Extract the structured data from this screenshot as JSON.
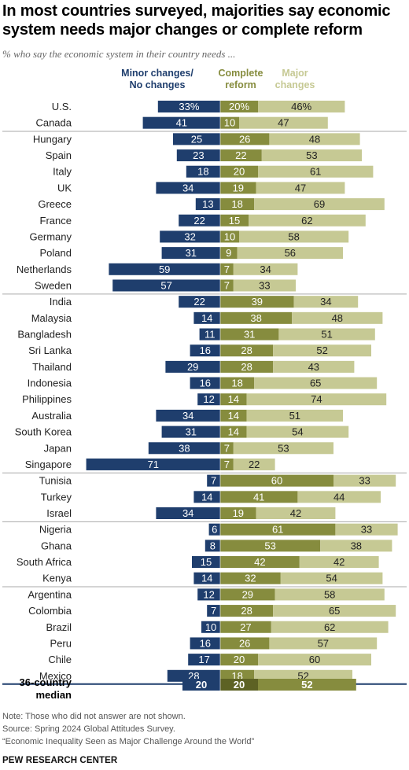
{
  "title": "In most countries surveyed, majorities say economic system needs major changes or complete reform",
  "subtitle": "% who say the economic system in their country needs ...",
  "legend": {
    "minor": [
      "Minor changes/",
      "No changes"
    ],
    "complete": [
      "Complete",
      "reform"
    ],
    "major": [
      "Major",
      "changes"
    ]
  },
  "colors": {
    "minor": "#1f3e6d",
    "complete": "#868c3e",
    "major": "#c6c994",
    "separator": "#1f3e6d",
    "legend_complete": "#868c3e",
    "legend_major": "#c6c994"
  },
  "chart_data": {
    "type": "bar",
    "orientation": "horizontal-diverging-stacked",
    "series_names": [
      "Minor changes/No changes",
      "Complete reform",
      "Major changes"
    ],
    "rows": [
      {
        "label": "U.S.",
        "minor": 33,
        "complete": 20,
        "major": 46,
        "minor_text": "33%",
        "complete_text": "20%",
        "major_text": "46%"
      },
      {
        "label": "Canada",
        "minor": 41,
        "complete": 10,
        "major": 47
      },
      {
        "label": "Hungary",
        "minor": 25,
        "complete": 26,
        "major": 48
      },
      {
        "label": "Spain",
        "minor": 23,
        "complete": 22,
        "major": 53
      },
      {
        "label": "Italy",
        "minor": 18,
        "complete": 20,
        "major": 61
      },
      {
        "label": "UK",
        "minor": 34,
        "complete": 19,
        "major": 47
      },
      {
        "label": "Greece",
        "minor": 13,
        "complete": 18,
        "major": 69
      },
      {
        "label": "France",
        "minor": 22,
        "complete": 15,
        "major": 62
      },
      {
        "label": "Germany",
        "minor": 32,
        "complete": 10,
        "major": 58
      },
      {
        "label": "Poland",
        "minor": 31,
        "complete": 9,
        "major": 56
      },
      {
        "label": "Netherlands",
        "minor": 59,
        "complete": 7,
        "major": 34
      },
      {
        "label": "Sweden",
        "minor": 57,
        "complete": 7,
        "major": 33
      },
      {
        "label": "India",
        "minor": 22,
        "complete": 39,
        "major": 34
      },
      {
        "label": "Malaysia",
        "minor": 14,
        "complete": 38,
        "major": 48
      },
      {
        "label": "Bangladesh",
        "minor": 11,
        "complete": 31,
        "major": 51
      },
      {
        "label": "Sri Lanka",
        "minor": 16,
        "complete": 28,
        "major": 52
      },
      {
        "label": "Thailand",
        "minor": 29,
        "complete": 28,
        "major": 43
      },
      {
        "label": "Indonesia",
        "minor": 16,
        "complete": 18,
        "major": 65
      },
      {
        "label": "Philippines",
        "minor": 12,
        "complete": 14,
        "major": 74
      },
      {
        "label": "Australia",
        "minor": 34,
        "complete": 14,
        "major": 51
      },
      {
        "label": "South Korea",
        "minor": 31,
        "complete": 14,
        "major": 54
      },
      {
        "label": "Japan",
        "minor": 38,
        "complete": 7,
        "major": 53
      },
      {
        "label": "Singapore",
        "minor": 71,
        "complete": 7,
        "major": 22
      },
      {
        "label": "Tunisia",
        "minor": 7,
        "complete": 60,
        "major": 33
      },
      {
        "label": "Turkey",
        "minor": 14,
        "complete": 41,
        "major": 44
      },
      {
        "label": "Israel",
        "minor": 34,
        "complete": 19,
        "major": 42
      },
      {
        "label": "Nigeria",
        "minor": 6,
        "complete": 61,
        "major": 33
      },
      {
        "label": "Ghana",
        "minor": 8,
        "complete": 53,
        "major": 38
      },
      {
        "label": "South Africa",
        "minor": 15,
        "complete": 42,
        "major": 42
      },
      {
        "label": "Kenya",
        "minor": 14,
        "complete": 32,
        "major": 54
      },
      {
        "label": "Argentina",
        "minor": 12,
        "complete": 29,
        "major": 58
      },
      {
        "label": "Colombia",
        "minor": 7,
        "complete": 28,
        "major": 65
      },
      {
        "label": "Brazil",
        "minor": 10,
        "complete": 27,
        "major": 62
      },
      {
        "label": "Peru",
        "minor": 16,
        "complete": 26,
        "major": 57
      },
      {
        "label": "Chile",
        "minor": 17,
        "complete": 20,
        "major": 60
      },
      {
        "label": "Mexico",
        "minor": 28,
        "complete": 18,
        "major": 52
      }
    ],
    "group_breaks_after": [
      "Canada",
      "Sweden",
      "Singapore",
      "Israel",
      "Kenya"
    ],
    "median": {
      "label": [
        "36-country",
        "median"
      ],
      "minor": 20,
      "complete": 20,
      "major": 52
    }
  },
  "notes": [
    "Note: Those who did not answer are not shown.",
    "Source: Spring 2024 Global Attitudes Survey.",
    "“Economic Inequality Seen as Major Challenge Around the World”"
  ],
  "brand": "PEW RESEARCH CENTER"
}
